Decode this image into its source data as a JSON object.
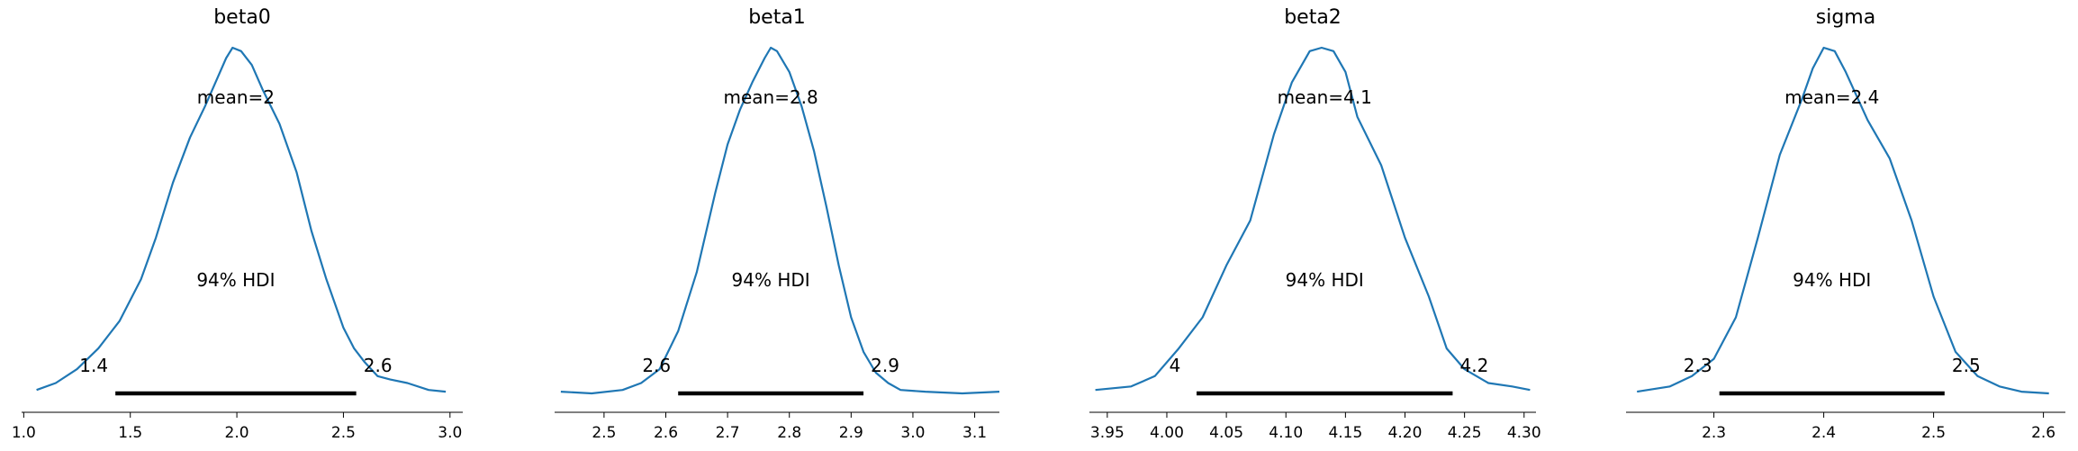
{
  "colors": {
    "curve": "#1f77b4",
    "hdi": "#000000",
    "axis": "#000000"
  },
  "chart_data": [
    {
      "type": "line",
      "title": "beta0",
      "mean_label": "mean=2",
      "hdi_label": "94% HDI",
      "hdi": [
        1.43,
        2.56
      ],
      "hdi_low_label": "1.4",
      "hdi_high_label": "2.6",
      "xlim": [
        0.99,
        3.06
      ],
      "xticks": [
        1.0,
        1.5,
        2.0,
        2.5,
        3.0
      ],
      "xtick_labels": [
        "1.0",
        "1.5",
        "2.0",
        "2.5",
        "3.0"
      ],
      "x": [
        1.06,
        1.15,
        1.25,
        1.35,
        1.45,
        1.55,
        1.62,
        1.7,
        1.78,
        1.85,
        1.9,
        1.95,
        1.98,
        2.02,
        2.07,
        2.12,
        2.2,
        2.28,
        2.35,
        2.42,
        2.5,
        2.55,
        2.6,
        2.66,
        2.72,
        2.8,
        2.9,
        2.98
      ],
      "y": [
        0.01,
        0.03,
        0.07,
        0.13,
        0.21,
        0.33,
        0.45,
        0.61,
        0.74,
        0.83,
        0.9,
        0.97,
        1.0,
        0.99,
        0.95,
        0.88,
        0.78,
        0.64,
        0.47,
        0.33,
        0.19,
        0.13,
        0.09,
        0.05,
        0.04,
        0.03,
        0.01,
        0.005
      ]
    },
    {
      "type": "line",
      "title": "beta1",
      "mean_label": "mean=2.8",
      "hdi_label": "94% HDI",
      "hdi": [
        2.62,
        2.92
      ],
      "hdi_low_label": "2.6",
      "hdi_high_label": "2.9",
      "xlim": [
        2.42,
        3.14
      ],
      "xticks": [
        2.5,
        2.6,
        2.7,
        2.8,
        2.9,
        3.0,
        3.1
      ],
      "xtick_labels": [
        "2.5",
        "2.6",
        "2.7",
        "2.8",
        "2.9",
        "3.0",
        "3.1"
      ],
      "x": [
        2.43,
        2.48,
        2.53,
        2.56,
        2.59,
        2.62,
        2.65,
        2.68,
        2.7,
        2.72,
        2.74,
        2.76,
        2.77,
        2.78,
        2.8,
        2.82,
        2.84,
        2.86,
        2.88,
        2.9,
        2.92,
        2.94,
        2.96,
        2.98,
        3.02,
        3.08,
        3.14
      ],
      "y": [
        0.005,
        0.0,
        0.01,
        0.03,
        0.07,
        0.18,
        0.35,
        0.58,
        0.72,
        0.82,
        0.9,
        0.97,
        1.0,
        0.99,
        0.93,
        0.83,
        0.7,
        0.54,
        0.37,
        0.22,
        0.12,
        0.06,
        0.03,
        0.01,
        0.005,
        0.0,
        0.005
      ]
    },
    {
      "type": "line",
      "title": "beta2",
      "mean_label": "mean=4.1",
      "hdi_label": "94% HDI",
      "hdi": [
        4.025,
        4.24
      ],
      "hdi_low_label": "4",
      "hdi_high_label": "4.2",
      "xlim": [
        3.935,
        4.31
      ],
      "xticks": [
        3.95,
        4.0,
        4.05,
        4.1,
        4.15,
        4.2,
        4.25,
        4.3
      ],
      "xtick_labels": [
        "3.95",
        "4.00",
        "4.05",
        "4.10",
        "4.15",
        "4.20",
        "4.25",
        "4.30"
      ],
      "x": [
        3.94,
        3.97,
        3.99,
        4.01,
        4.03,
        4.05,
        4.07,
        4.09,
        4.105,
        4.12,
        4.13,
        4.14,
        4.15,
        4.16,
        4.18,
        4.2,
        4.22,
        4.235,
        4.25,
        4.27,
        4.29,
        4.305
      ],
      "y": [
        0.01,
        0.02,
        0.05,
        0.13,
        0.22,
        0.37,
        0.5,
        0.75,
        0.9,
        0.99,
        1.0,
        0.99,
        0.93,
        0.8,
        0.66,
        0.45,
        0.28,
        0.13,
        0.07,
        0.03,
        0.02,
        0.01
      ]
    },
    {
      "type": "line",
      "title": "sigma",
      "mean_label": "mean=2.4",
      "hdi_label": "94% HDI",
      "hdi": [
        2.305,
        2.51
      ],
      "hdi_low_label": "2.3",
      "hdi_high_label": "2.5",
      "xlim": [
        2.22,
        2.62
      ],
      "xticks": [
        2.3,
        2.4,
        2.5,
        2.6
      ],
      "xtick_labels": [
        "2.3",
        "2.4",
        "2.5",
        "2.6"
      ],
      "x": [
        2.23,
        2.26,
        2.28,
        2.3,
        2.32,
        2.34,
        2.36,
        2.38,
        2.39,
        2.4,
        2.41,
        2.42,
        2.44,
        2.46,
        2.48,
        2.5,
        2.52,
        2.54,
        2.56,
        2.58,
        2.605
      ],
      "y": [
        0.005,
        0.02,
        0.05,
        0.1,
        0.22,
        0.45,
        0.69,
        0.85,
        0.94,
        1.0,
        0.99,
        0.93,
        0.79,
        0.68,
        0.5,
        0.28,
        0.12,
        0.05,
        0.02,
        0.005,
        0.0
      ]
    }
  ]
}
